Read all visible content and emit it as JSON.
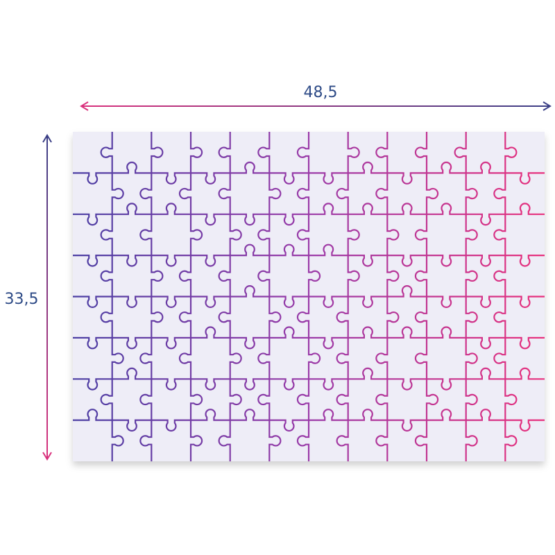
{
  "dimensions": {
    "width_label": "48,5",
    "height_label": "33,5"
  }
}
